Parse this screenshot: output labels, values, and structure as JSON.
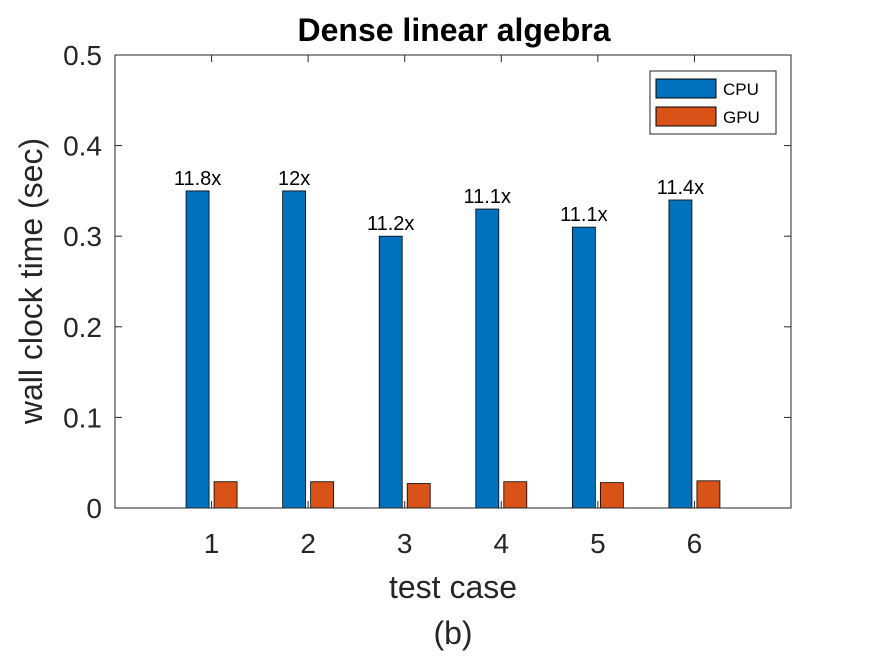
{
  "chart_data": {
    "type": "bar",
    "title": "Dense linear algebra",
    "xlabel": "test case",
    "ylabel": "wall clock time (sec)",
    "caption": "(b)",
    "categories": [
      "1",
      "2",
      "3",
      "4",
      "5",
      "6"
    ],
    "ylim": [
      0,
      0.5
    ],
    "yticks": [
      0,
      0.1,
      0.2,
      0.3,
      0.4,
      0.5
    ],
    "ytick_labels": [
      "0",
      "0.1",
      "0.2",
      "0.3",
      "0.4",
      "0.5"
    ],
    "xlim": [
      0,
      7
    ],
    "series": [
      {
        "name": "CPU",
        "color": "#0072BD",
        "values": [
          0.35,
          0.35,
          0.3,
          0.33,
          0.31,
          0.34
        ]
      },
      {
        "name": "GPU",
        "color": "#D95319",
        "values": [
          0.029,
          0.029,
          0.027,
          0.029,
          0.028,
          0.03
        ]
      }
    ],
    "annotations": [
      "11.8x",
      "12x",
      "11.2x",
      "11.1x",
      "11.1x",
      "11.4x"
    ],
    "legend_position": "top-right",
    "grid": false
  }
}
